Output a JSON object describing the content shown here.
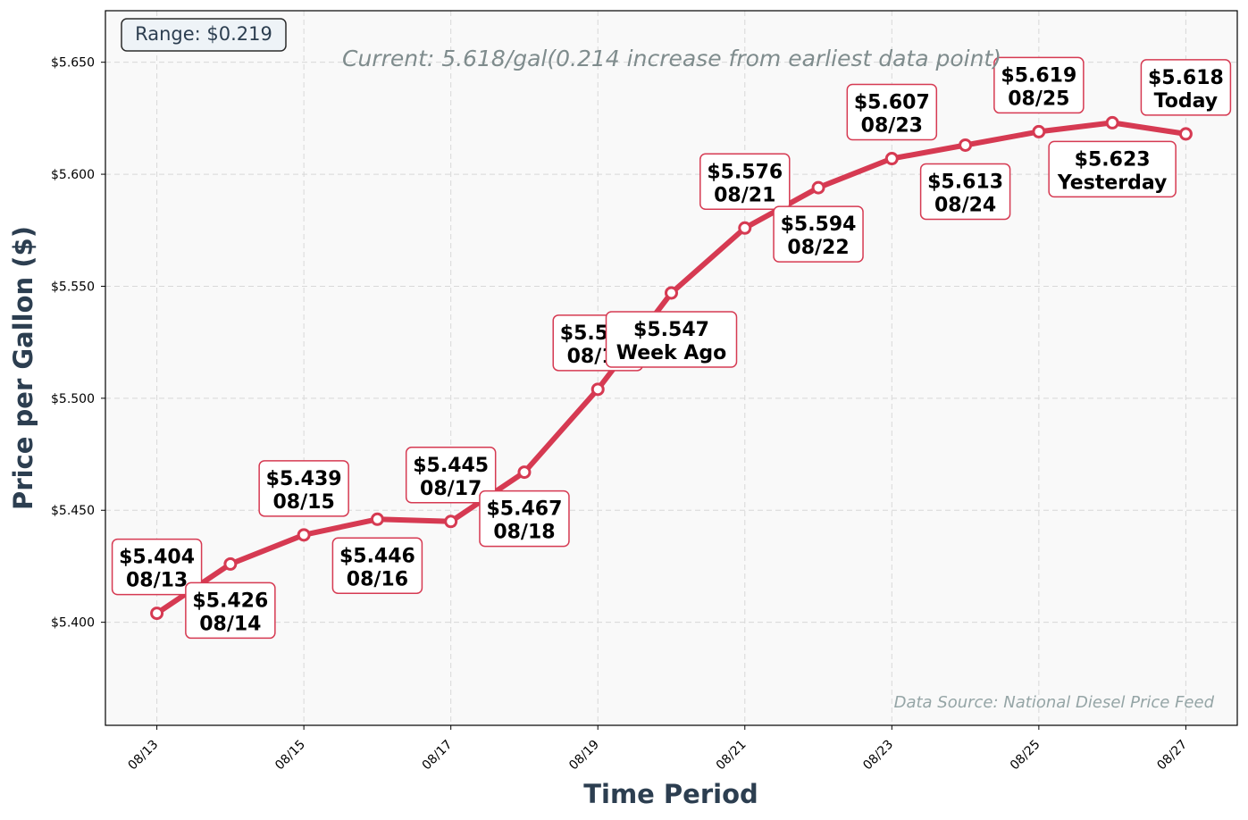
{
  "chart_data": {
    "type": "line",
    "title": "",
    "xlabel": "Time Period",
    "ylabel": "Price per Gallon ($)",
    "ylim": [
      5.354,
      5.673
    ],
    "xlim": [
      -0.7,
      14.7
    ],
    "grid": true,
    "yticks": [
      5.4,
      5.45,
      5.5,
      5.55,
      5.6,
      5.65
    ],
    "ytick_labels": [
      "$5.400",
      "$5.450",
      "$5.500",
      "$5.550",
      "$5.600",
      "$5.650"
    ],
    "xticks": [
      0,
      2,
      4,
      6,
      8,
      10,
      12,
      14
    ],
    "xtick_labels": [
      "08/13",
      "08/15",
      "08/17",
      "08/19",
      "08/21",
      "08/23",
      "08/25",
      "08/27"
    ],
    "x": [
      0,
      1,
      2,
      3,
      4,
      5,
      6,
      7,
      8,
      9,
      10,
      11,
      12,
      13,
      14
    ],
    "values": [
      5.404,
      5.426,
      5.439,
      5.446,
      5.445,
      5.467,
      5.504,
      5.547,
      5.576,
      5.594,
      5.607,
      5.613,
      5.619,
      5.623,
      5.618
    ],
    "annotations": [
      {
        "index": 0,
        "price": "$5.404",
        "label": "08/13",
        "side": "above"
      },
      {
        "index": 1,
        "price": "$5.426",
        "label": "08/14",
        "side": "below"
      },
      {
        "index": 2,
        "price": "$5.439",
        "label": "08/15",
        "side": "above"
      },
      {
        "index": 3,
        "price": "$5.446",
        "label": "08/16",
        "side": "below"
      },
      {
        "index": 4,
        "price": "$5.445",
        "label": "08/17",
        "side": "above"
      },
      {
        "index": 5,
        "price": "$5.467",
        "label": "08/18",
        "side": "below"
      },
      {
        "index": 6,
        "price": "$5.504",
        "label": "08/19",
        "side": "above"
      },
      {
        "index": 7,
        "price": "$5.547",
        "label": "Week Ago",
        "side": "below"
      },
      {
        "index": 8,
        "price": "$5.576",
        "label": "08/21",
        "side": "above"
      },
      {
        "index": 9,
        "price": "$5.594",
        "label": "08/22",
        "side": "below"
      },
      {
        "index": 10,
        "price": "$5.607",
        "label": "08/23",
        "side": "above"
      },
      {
        "index": 11,
        "price": "$5.613",
        "label": "08/24",
        "side": "below"
      },
      {
        "index": 12,
        "price": "$5.619",
        "label": "08/25",
        "side": "above"
      },
      {
        "index": 13,
        "price": "$5.623",
        "label": "Yesterday",
        "side": "below"
      },
      {
        "index": 14,
        "price": "$5.618",
        "label": "Today",
        "side": "above"
      }
    ],
    "range_box": "Range: $0.219",
    "current_text": "Current: 5.618/gal(0.214 increase from earliest data point)",
    "source_text": "Data Source: National Diesel Price Feed",
    "colors": {
      "line": "#d63a52",
      "marker_fill": "#ffffff",
      "annotation_border": "#d63a52",
      "plot_bg": "#f9f9f9",
      "axis_title": "#2c3e50",
      "current_text": "#7f8c8d",
      "source_text": "#95a5a6",
      "range_bg": "#eef3f7"
    }
  }
}
